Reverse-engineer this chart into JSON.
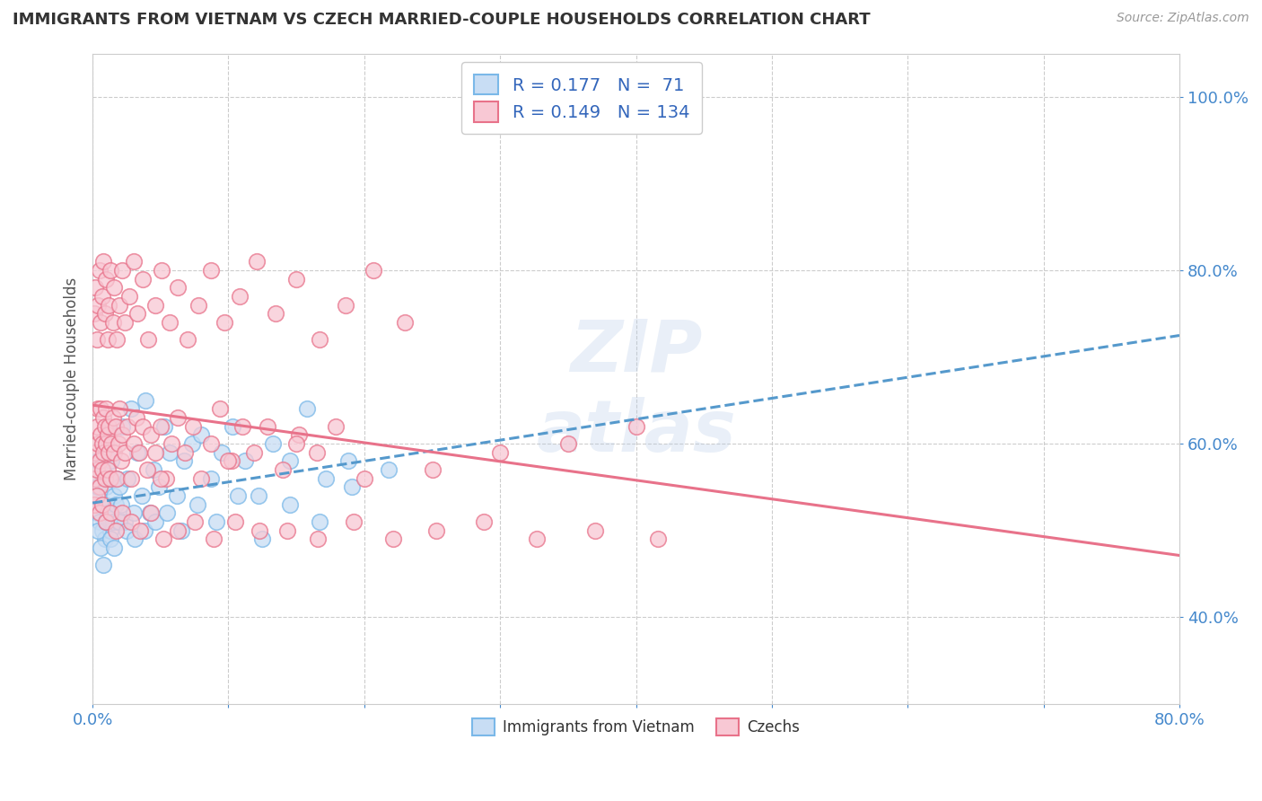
{
  "title": "IMMIGRANTS FROM VIETNAM VS CZECH MARRIED-COUPLE HOUSEHOLDS CORRELATION CHART",
  "source": "Source: ZipAtlas.com",
  "ylabel": "Married-couple Households",
  "xlim": [
    0.0,
    0.8
  ],
  "ylim": [
    0.3,
    1.05
  ],
  "xticks": [
    0.0,
    0.1,
    0.2,
    0.3,
    0.4,
    0.5,
    0.6,
    0.7,
    0.8
  ],
  "yticks": [
    0.4,
    0.6,
    0.8,
    1.0
  ],
  "background_color": "#ffffff",
  "grid_color": "#cccccc",
  "title_color": "#333333",
  "axis_label_color": "#555555",
  "tick_color": "#4488cc",
  "series": [
    {
      "name": "Immigrants from Vietnam",
      "edge_color": "#7ab8e8",
      "face_color": "#c8ddf4",
      "trend_color": "#5599cc",
      "trend_style": "--",
      "R": 0.177,
      "N": 71,
      "x": [
        0.001,
        0.002,
        0.003,
        0.004,
        0.004,
        0.005,
        0.006,
        0.007,
        0.008,
        0.009,
        0.01,
        0.01,
        0.011,
        0.012,
        0.013,
        0.014,
        0.015,
        0.016,
        0.017,
        0.018,
        0.019,
        0.02,
        0.021,
        0.022,
        0.024,
        0.026,
        0.028,
        0.03,
        0.033,
        0.036,
        0.039,
        0.042,
        0.045,
        0.049,
        0.053,
        0.057,
        0.062,
        0.067,
        0.073,
        0.08,
        0.087,
        0.095,
        0.103,
        0.112,
        0.122,
        0.133,
        0.145,
        0.158,
        0.172,
        0.188,
        0.004,
        0.006,
        0.008,
        0.01,
        0.013,
        0.016,
        0.02,
        0.025,
        0.031,
        0.038,
        0.046,
        0.055,
        0.065,
        0.077,
        0.091,
        0.107,
        0.125,
        0.145,
        0.167,
        0.191,
        0.218
      ],
      "y": [
        0.54,
        0.56,
        0.52,
        0.55,
        0.58,
        0.51,
        0.53,
        0.5,
        0.57,
        0.49,
        0.55,
        0.53,
        0.52,
        0.56,
        0.5,
        0.58,
        0.51,
        0.54,
        0.53,
        0.56,
        0.51,
        0.55,
        0.53,
        0.62,
        0.51,
        0.56,
        0.64,
        0.52,
        0.59,
        0.54,
        0.65,
        0.52,
        0.57,
        0.55,
        0.62,
        0.59,
        0.54,
        0.58,
        0.6,
        0.61,
        0.56,
        0.59,
        0.62,
        0.58,
        0.54,
        0.6,
        0.58,
        0.64,
        0.56,
        0.58,
        0.5,
        0.48,
        0.46,
        0.51,
        0.49,
        0.48,
        0.51,
        0.5,
        0.49,
        0.5,
        0.51,
        0.52,
        0.5,
        0.53,
        0.51,
        0.54,
        0.49,
        0.53,
        0.51,
        0.55,
        0.57
      ]
    },
    {
      "name": "Czechs",
      "edge_color": "#e8728a",
      "face_color": "#f8c8d4",
      "trend_color": "#e8728a",
      "trend_style": "-",
      "R": 0.149,
      "N": 134,
      "x": [
        0.001,
        0.002,
        0.002,
        0.003,
        0.003,
        0.004,
        0.004,
        0.005,
        0.005,
        0.006,
        0.006,
        0.007,
        0.007,
        0.008,
        0.008,
        0.009,
        0.009,
        0.01,
        0.01,
        0.011,
        0.011,
        0.012,
        0.012,
        0.013,
        0.014,
        0.015,
        0.016,
        0.017,
        0.018,
        0.019,
        0.02,
        0.021,
        0.022,
        0.024,
        0.026,
        0.028,
        0.03,
        0.032,
        0.034,
        0.037,
        0.04,
        0.043,
        0.046,
        0.05,
        0.054,
        0.058,
        0.063,
        0.068,
        0.074,
        0.08,
        0.087,
        0.094,
        0.102,
        0.11,
        0.119,
        0.129,
        0.14,
        0.152,
        0.165,
        0.179,
        0.001,
        0.002,
        0.003,
        0.004,
        0.005,
        0.006,
        0.007,
        0.008,
        0.009,
        0.01,
        0.011,
        0.012,
        0.013,
        0.015,
        0.016,
        0.018,
        0.02,
        0.022,
        0.024,
        0.027,
        0.03,
        0.033,
        0.037,
        0.041,
        0.046,
        0.051,
        0.057,
        0.063,
        0.07,
        0.078,
        0.087,
        0.097,
        0.108,
        0.121,
        0.135,
        0.15,
        0.167,
        0.186,
        0.207,
        0.23,
        0.001,
        0.003,
        0.005,
        0.007,
        0.01,
        0.013,
        0.017,
        0.022,
        0.028,
        0.035,
        0.043,
        0.052,
        0.063,
        0.075,
        0.089,
        0.105,
        0.123,
        0.143,
        0.166,
        0.192,
        0.221,
        0.253,
        0.288,
        0.327,
        0.37,
        0.416,
        0.05,
        0.1,
        0.15,
        0.2,
        0.25,
        0.3,
        0.35,
        0.4
      ],
      "y": [
        0.53,
        0.56,
        0.59,
        0.62,
        0.57,
        0.6,
        0.64,
        0.55,
        0.58,
        0.61,
        0.64,
        0.57,
        0.6,
        0.63,
        0.59,
        0.62,
        0.56,
        0.6,
        0.64,
        0.57,
        0.61,
        0.59,
        0.62,
        0.56,
        0.6,
        0.63,
        0.59,
        0.62,
        0.56,
        0.6,
        0.64,
        0.58,
        0.61,
        0.59,
        0.62,
        0.56,
        0.6,
        0.63,
        0.59,
        0.62,
        0.57,
        0.61,
        0.59,
        0.62,
        0.56,
        0.6,
        0.63,
        0.59,
        0.62,
        0.56,
        0.6,
        0.64,
        0.58,
        0.62,
        0.59,
        0.62,
        0.57,
        0.61,
        0.59,
        0.62,
        0.75,
        0.78,
        0.72,
        0.76,
        0.8,
        0.74,
        0.77,
        0.81,
        0.75,
        0.79,
        0.72,
        0.76,
        0.8,
        0.74,
        0.78,
        0.72,
        0.76,
        0.8,
        0.74,
        0.77,
        0.81,
        0.75,
        0.79,
        0.72,
        0.76,
        0.8,
        0.74,
        0.78,
        0.72,
        0.76,
        0.8,
        0.74,
        0.77,
        0.81,
        0.75,
        0.79,
        0.72,
        0.76,
        0.8,
        0.74,
        0.53,
        0.54,
        0.52,
        0.53,
        0.51,
        0.52,
        0.5,
        0.52,
        0.51,
        0.5,
        0.52,
        0.49,
        0.5,
        0.51,
        0.49,
        0.51,
        0.5,
        0.5,
        0.49,
        0.51,
        0.49,
        0.5,
        0.51,
        0.49,
        0.5,
        0.49,
        0.56,
        0.58,
        0.6,
        0.56,
        0.57,
        0.59,
        0.6,
        0.62
      ]
    }
  ]
}
